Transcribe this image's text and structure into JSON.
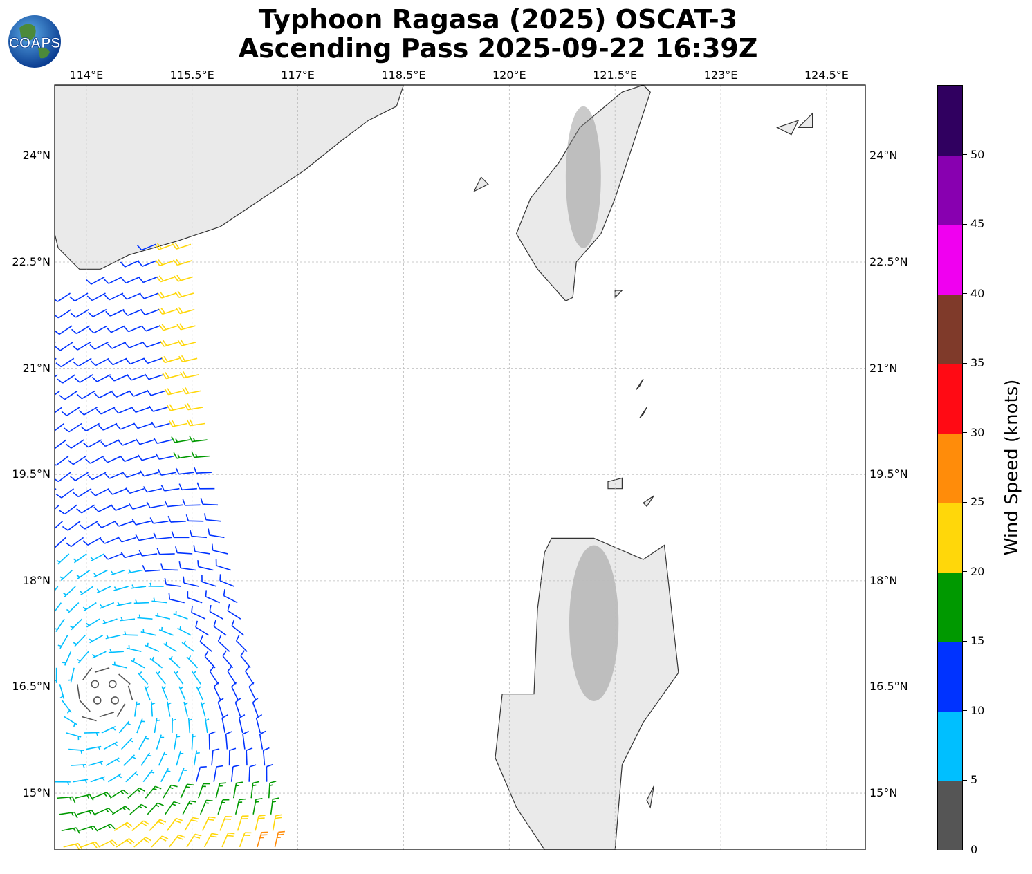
{
  "header": {
    "logo_text": "COAPS",
    "title_line1": "Typhoon Ragasa (2025) OSCAT-3",
    "title_line2": "Ascending Pass 2025-09-22 16:39Z"
  },
  "map": {
    "extent": {
      "lon_min": 113.55,
      "lon_max": 125.05,
      "lat_min": 14.2,
      "lat_max": 25.0
    },
    "lon_ticks": [
      {
        "value": 114.0,
        "label": "114°E"
      },
      {
        "value": 115.5,
        "label": "115.5°E"
      },
      {
        "value": 117.0,
        "label": "117°E"
      },
      {
        "value": 118.5,
        "label": "118.5°E"
      },
      {
        "value": 120.0,
        "label": "120°E"
      },
      {
        "value": 121.5,
        "label": "121.5°E"
      },
      {
        "value": 123.0,
        "label": "123°E"
      },
      {
        "value": 124.5,
        "label": "124.5°E"
      }
    ],
    "lat_ticks": [
      {
        "value": 24.0,
        "label": "24°N"
      },
      {
        "value": 22.5,
        "label": "22.5°N"
      },
      {
        "value": 21.0,
        "label": "21°N"
      },
      {
        "value": 19.5,
        "label": "19.5°N"
      },
      {
        "value": 18.0,
        "label": "18°N"
      },
      {
        "value": 16.5,
        "label": "16.5°N"
      },
      {
        "value": 15.0,
        "label": "15°N"
      }
    ],
    "gridlines": true,
    "land": [
      {
        "name": "China",
        "coords": [
          [
            113.55,
            25.0
          ],
          [
            118.5,
            25.0
          ],
          [
            118.4,
            24.7
          ],
          [
            118.0,
            24.5
          ],
          [
            117.6,
            24.2
          ],
          [
            117.1,
            23.8
          ],
          [
            116.5,
            23.4
          ],
          [
            115.9,
            23.0
          ],
          [
            115.3,
            22.8
          ],
          [
            114.6,
            22.6
          ],
          [
            114.2,
            22.4
          ],
          [
            113.9,
            22.4
          ],
          [
            113.6,
            22.7
          ],
          [
            113.55,
            22.9
          ]
        ]
      },
      {
        "name": "Taiwan",
        "coords": [
          [
            121.9,
            25.0
          ],
          [
            121.6,
            24.9
          ],
          [
            121.0,
            24.4
          ],
          [
            120.7,
            23.9
          ],
          [
            120.3,
            23.4
          ],
          [
            120.1,
            22.9
          ],
          [
            120.4,
            22.4
          ],
          [
            120.8,
            21.95
          ],
          [
            120.9,
            22.0
          ],
          [
            120.95,
            22.5
          ],
          [
            121.3,
            22.9
          ],
          [
            121.5,
            23.4
          ],
          [
            121.7,
            24.0
          ],
          [
            122.0,
            24.9
          ]
        ]
      },
      {
        "name": "Luzon",
        "coords": [
          [
            120.6,
            18.6
          ],
          [
            121.2,
            18.6
          ],
          [
            121.9,
            18.3
          ],
          [
            122.2,
            18.5
          ],
          [
            122.3,
            17.6
          ],
          [
            122.4,
            16.7
          ],
          [
            121.9,
            16.0
          ],
          [
            121.6,
            15.4
          ],
          [
            121.5,
            14.2
          ],
          [
            120.5,
            14.2
          ],
          [
            120.1,
            14.8
          ],
          [
            119.8,
            15.5
          ],
          [
            119.9,
            16.4
          ],
          [
            120.35,
            16.4
          ],
          [
            120.4,
            17.6
          ],
          [
            120.5,
            18.4
          ]
        ]
      },
      {
        "name": "Babuyan-1",
        "coords": [
          [
            121.4,
            19.3
          ],
          [
            121.6,
            19.3
          ],
          [
            121.6,
            19.45
          ],
          [
            121.4,
            19.4
          ]
        ]
      },
      {
        "name": "Babuyan-2",
        "coords": [
          [
            121.95,
            19.05
          ],
          [
            122.05,
            19.2
          ],
          [
            121.9,
            19.1
          ]
        ]
      },
      {
        "name": "Batanes-1",
        "coords": [
          [
            121.85,
            20.3
          ],
          [
            121.95,
            20.45
          ],
          [
            121.9,
            20.35
          ]
        ]
      },
      {
        "name": "Batanes-2",
        "coords": [
          [
            121.8,
            20.7
          ],
          [
            121.9,
            20.85
          ],
          [
            121.85,
            20.75
          ]
        ]
      },
      {
        "name": "Penghu",
        "coords": [
          [
            119.5,
            23.5
          ],
          [
            119.7,
            23.6
          ],
          [
            119.6,
            23.7
          ]
        ]
      },
      {
        "name": "Lanyu",
        "coords": [
          [
            121.5,
            22.0
          ],
          [
            121.6,
            22.1
          ],
          [
            121.5,
            22.1
          ]
        ]
      },
      {
        "name": "Yonaguni",
        "coords": [
          [
            123.8,
            24.4
          ],
          [
            124.1,
            24.5
          ],
          [
            124.0,
            24.3
          ]
        ]
      },
      {
        "name": "Ishigaki",
        "coords": [
          [
            124.1,
            24.4
          ],
          [
            124.3,
            24.6
          ],
          [
            124.3,
            24.4
          ]
        ]
      },
      {
        "name": "Catanduanes",
        "coords": [
          [
            121.95,
            14.9
          ],
          [
            122.05,
            15.1
          ],
          [
            122.0,
            14.8
          ]
        ]
      }
    ],
    "colors": {
      "land": "#eaeaea",
      "coast": "#333333",
      "grid": "#bbbbbb",
      "ocean": "#ffffff"
    }
  },
  "colorbar": {
    "label": "Wind Speed (knots)",
    "ticks": [
      "0",
      "5",
      "10",
      "15",
      "20",
      "25",
      "30",
      "35",
      "40",
      "45",
      "50"
    ],
    "bins": [
      {
        "min": 0,
        "max": 5,
        "color": "#555555"
      },
      {
        "min": 5,
        "max": 10,
        "color": "#00bfff"
      },
      {
        "min": 10,
        "max": 15,
        "color": "#0033ff"
      },
      {
        "min": 15,
        "max": 20,
        "color": "#009900"
      },
      {
        "min": 20,
        "max": 25,
        "color": "#ffd70a"
      },
      {
        "min": 25,
        "max": 30,
        "color": "#ff8c0a"
      },
      {
        "min": 30,
        "max": 35,
        "color": "#ff0a14"
      },
      {
        "min": 35,
        "max": 40,
        "color": "#7f3a2a"
      },
      {
        "min": 40,
        "max": 45,
        "color": "#f000f0"
      },
      {
        "min": 45,
        "max": 50,
        "color": "#8800b0"
      },
      {
        "min": 50,
        "max": 55,
        "color": "#300060"
      }
    ]
  },
  "wind_field": {
    "swath_east_edge": [
      [
        115.5,
        22.8
      ],
      [
        115.6,
        21.0
      ],
      [
        115.8,
        19.5
      ],
      [
        116.1,
        18.0
      ],
      [
        116.4,
        16.5
      ],
      [
        116.6,
        15.0
      ],
      [
        116.7,
        14.2
      ]
    ],
    "swath_west_lon": 113.55,
    "center_lon": 114.25,
    "center_lat": 16.4,
    "row_spacing_deg": 0.23,
    "col_spacing_deg": 0.25
  }
}
